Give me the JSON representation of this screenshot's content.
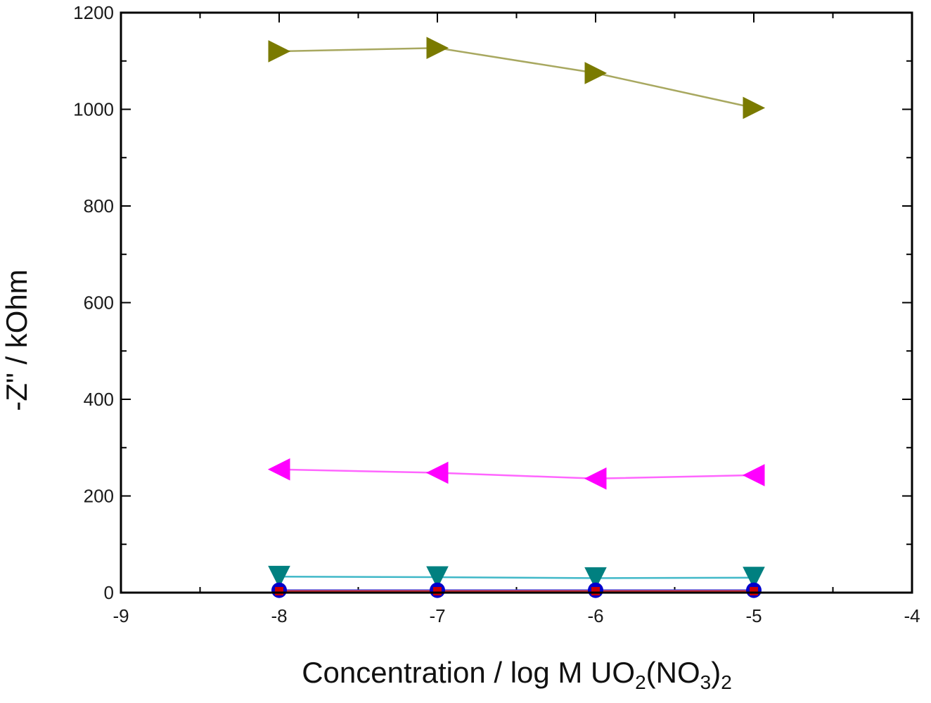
{
  "chart_data": {
    "type": "line",
    "title": "",
    "xlabel": {
      "main": "Concentration / log M UO",
      "sub1": "2",
      "mid": "(NO",
      "sub2": "3",
      "close": ")",
      "sub3": "2"
    },
    "ylabel": "-Z\" / kOhm",
    "xlim": [
      -9,
      -4
    ],
    "ylim": [
      0,
      1200
    ],
    "x_ticks": [
      -9,
      -8,
      -7,
      -6,
      -5,
      -4
    ],
    "x_tick_labels": [
      "-9",
      "-8",
      "-7",
      "-6",
      "-5",
      "-4"
    ],
    "y_ticks": [
      0,
      200,
      400,
      600,
      800,
      1000,
      1200
    ],
    "y_tick_labels": [
      "0",
      "200",
      "400",
      "600",
      "800",
      "1000",
      "1200"
    ],
    "x": [
      -8,
      -7,
      -6,
      -5
    ],
    "series": [
      {
        "name": "olive",
        "marker": "triangle-right",
        "color": "#7a7a00",
        "line_color": "#a8a860",
        "values": [
          1120,
          1127,
          1075,
          1003
        ]
      },
      {
        "name": "magenta",
        "marker": "triangle-left",
        "color": "#ff00ff",
        "line_color": "#ff66ff",
        "values": [
          255,
          248,
          236,
          243
        ]
      },
      {
        "name": "teal",
        "marker": "triangle-down",
        "color": "#008080",
        "line_color": "#40b8c8",
        "values": [
          33,
          32,
          30,
          31
        ]
      },
      {
        "name": "navy",
        "marker": "circle",
        "color": "#0000cc",
        "line_color": "#4444dd",
        "values": [
          5,
          5,
          5,
          5
        ]
      },
      {
        "name": "red",
        "marker": "square",
        "color": "#cc0000",
        "line_color": "#dd3333",
        "values": [
          3,
          3,
          3,
          3
        ]
      }
    ]
  }
}
